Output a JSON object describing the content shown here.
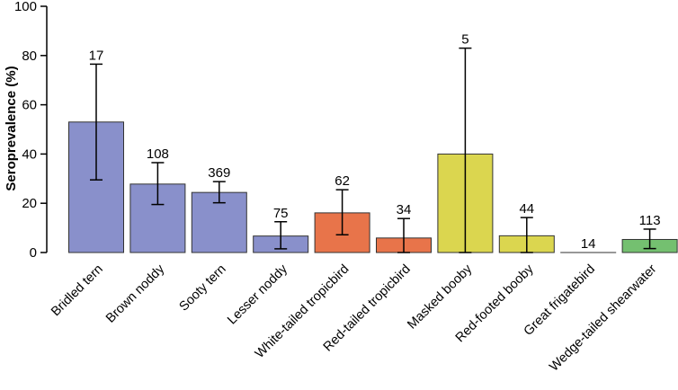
{
  "chart_data": {
    "type": "bar",
    "title": "",
    "xlabel": "",
    "ylabel": "Seroprevalence (%)",
    "ylim": [
      0,
      100
    ],
    "yticks": [
      0,
      20,
      40,
      60,
      80,
      100
    ],
    "grid": false,
    "categories": [
      "Bridled tern",
      "Brown noddy",
      "Sooty tern",
      "Lesser noddy",
      "White-tailed tropicbird",
      "Red-tailed tropicbird",
      "Masked booby",
      "Red-footed booby",
      "Great frigatebird",
      "Wedge-tailed shearwater"
    ],
    "values": [
      53,
      27.8,
      24.4,
      6.7,
      16.1,
      5.9,
      40,
      6.8,
      0,
      5.3
    ],
    "error_low": [
      29.5,
      19.5,
      20.2,
      1.5,
      7.2,
      0,
      0,
      0,
      0,
      1.6
    ],
    "error_high": [
      76.5,
      36.5,
      28.8,
      12.5,
      25.5,
      13.8,
      83,
      14.2,
      0,
      9.5
    ],
    "sample_sizes": [
      "17",
      "108",
      "369",
      "75",
      "62",
      "34",
      "5",
      "44",
      "14",
      "113"
    ],
    "colors": [
      "#8990cb",
      "#8990cb",
      "#8990cb",
      "#8990cb",
      "#e8744a",
      "#e8744a",
      "#dbd64f",
      "#dbd64f",
      "#dbd64f",
      "#74c070"
    ],
    "bar_stroke": "#333333"
  }
}
